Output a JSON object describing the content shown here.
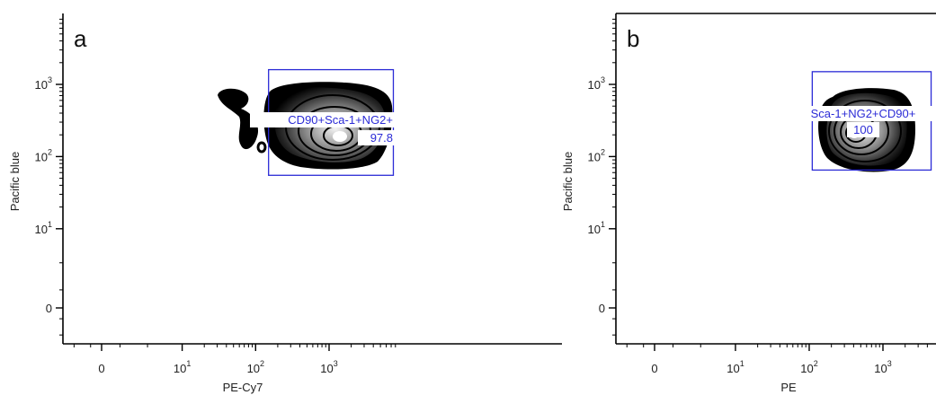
{
  "colors": {
    "gate": "#2b2bd6",
    "axis": "#000000",
    "contour_dark": "#000000",
    "contour_light": "#ffffff"
  },
  "chart_data": [
    {
      "type": "contour",
      "panel_label": "a",
      "xlabel": "PE-Cy7",
      "ylabel": "Pacific blue",
      "x_ticks": [
        {
          "label": "0",
          "value": 0
        },
        {
          "label": "10",
          "exp": "1",
          "value": 10
        },
        {
          "label": "10",
          "exp": "2",
          "value": 100
        },
        {
          "label": "10",
          "exp": "3",
          "value": 1000
        }
      ],
      "y_ticks": [
        {
          "label": "0",
          "value": 0
        },
        {
          "label": "10",
          "exp": "1",
          "value": 10
        },
        {
          "label": "10",
          "exp": "2",
          "value": 100
        },
        {
          "label": "10",
          "exp": "3",
          "value": 1000
        }
      ],
      "population": {
        "center_x": 800,
        "center_y": 200
      },
      "gate": {
        "name": "CD90+Sca-1+NG2+",
        "percent": "97.8",
        "x_range": [
          150,
          7500
        ],
        "y_range": [
          55,
          1600
        ]
      },
      "grid": false
    },
    {
      "type": "contour",
      "panel_label": "b",
      "xlabel": "PE",
      "ylabel": "Pacific blue",
      "x_ticks": [
        {
          "label": "0",
          "value": 0
        },
        {
          "label": "10",
          "exp": "1",
          "value": 10
        },
        {
          "label": "10",
          "exp": "2",
          "value": 100
        },
        {
          "label": "10",
          "exp": "3",
          "value": 1000
        }
      ],
      "y_ticks": [
        {
          "label": "0",
          "value": 0
        },
        {
          "label": "10",
          "exp": "1",
          "value": 10
        },
        {
          "label": "10",
          "exp": "2",
          "value": 100
        },
        {
          "label": "10",
          "exp": "3",
          "value": 1000
        }
      ],
      "population": {
        "center_x": 450,
        "center_y": 200
      },
      "gate": {
        "name": "Sca-1+NG2+CD90+",
        "percent": "100",
        "x_range": [
          110,
          4500
        ],
        "y_range": [
          65,
          1500
        ]
      },
      "grid": false
    }
  ]
}
